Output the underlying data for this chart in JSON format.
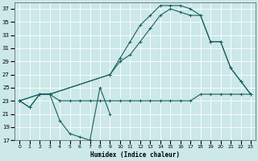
{
  "xlabel": "Humidex (Indice chaleur)",
  "background_color": "#cce8e8",
  "grid_color": "#ffffff",
  "line_color": "#1a6060",
  "xlim": [
    -0.5,
    23.5
  ],
  "ylim": [
    17,
    38
  ],
  "yticks": [
    17,
    19,
    21,
    23,
    25,
    27,
    29,
    31,
    33,
    35,
    37
  ],
  "xticks": [
    0,
    1,
    2,
    3,
    4,
    5,
    6,
    7,
    8,
    9,
    10,
    11,
    12,
    13,
    14,
    15,
    16,
    17,
    18,
    19,
    20,
    21,
    22,
    23
  ],
  "series": [
    {
      "x": [
        0,
        1,
        2,
        3,
        4,
        5,
        6,
        7,
        8,
        9,
        10,
        11,
        12,
        13,
        14,
        15,
        16,
        17,
        18,
        19,
        20,
        21,
        22,
        23
      ],
      "y": [
        23,
        22,
        24,
        24,
        23,
        23,
        23,
        23,
        23,
        23,
        23,
        23,
        23,
        23,
        23,
        23,
        23,
        23,
        24,
        24,
        24,
        24,
        24,
        24
      ]
    },
    {
      "x": [
        0,
        1,
        2,
        3,
        4,
        5,
        6,
        7,
        8,
        9
      ],
      "y": [
        23,
        22,
        24,
        24,
        20,
        18,
        17.5,
        17,
        25,
        21
      ]
    },
    {
      "x": [
        0,
        2,
        3,
        9,
        10,
        11,
        12,
        13,
        14,
        15,
        16,
        17,
        18,
        19,
        20,
        21,
        22,
        23
      ],
      "y": [
        23,
        24,
        24,
        27,
        29,
        30,
        32,
        34,
        36,
        37,
        36.5,
        36,
        36,
        32,
        32,
        28,
        26,
        24
      ]
    },
    {
      "x": [
        0,
        2,
        3,
        9,
        10,
        11,
        12,
        13,
        14,
        15,
        16,
        17,
        18,
        19,
        20,
        21,
        22,
        23
      ],
      "y": [
        23,
        24,
        24,
        27,
        29.5,
        32,
        34.5,
        36,
        37.5,
        37.5,
        37.5,
        37,
        36,
        32,
        32,
        28,
        26,
        24
      ]
    }
  ]
}
